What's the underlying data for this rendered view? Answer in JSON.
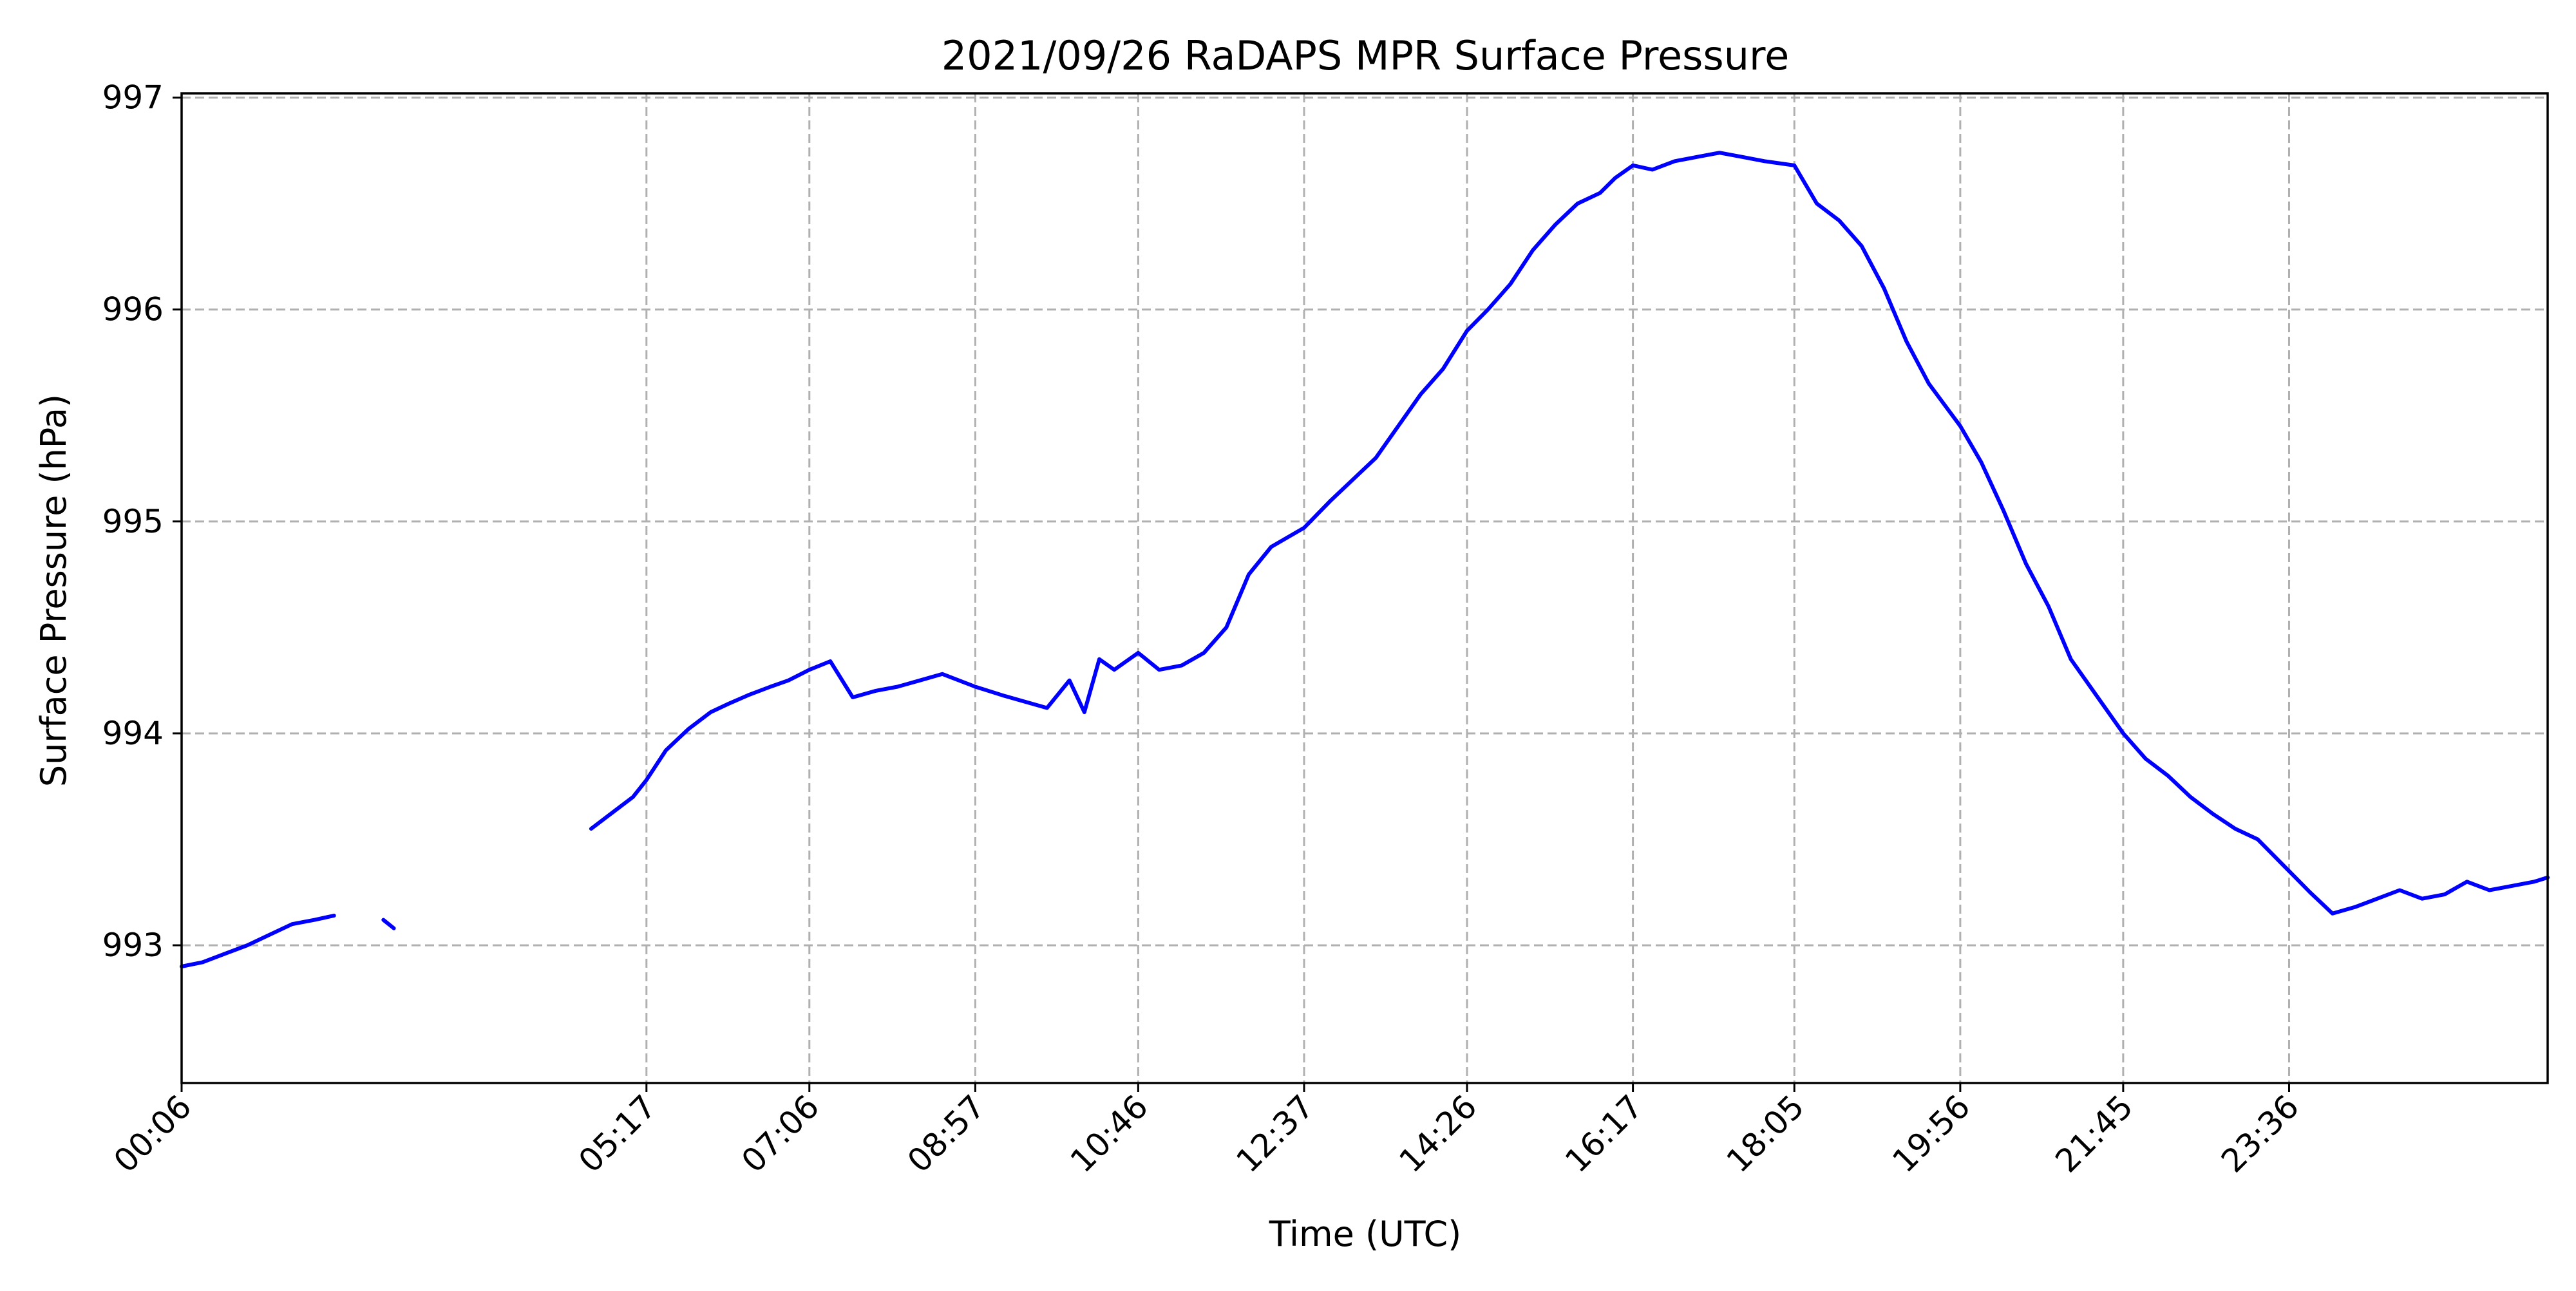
{
  "chart_data": {
    "type": "line",
    "title": "2021/09/26 RaDAPS MPR Surface Pressure",
    "xlabel": "Time (UTC)",
    "ylabel": "Surface Pressure (hPa)",
    "x_unit": "time of day (UTC)",
    "xlim": [
      "00:06",
      "26:29"
    ],
    "ylim": [
      992.35,
      997.02
    ],
    "x_ticks": [
      "00:06",
      "05:17",
      "07:06",
      "08:57",
      "10:46",
      "12:37",
      "14:26",
      "16:17",
      "18:05",
      "19:56",
      "21:45",
      "23:36"
    ],
    "y_ticks": [
      993,
      994,
      995,
      996,
      997
    ],
    "grid": true,
    "grid_style": "dashed",
    "legend": "none",
    "line_color": "#0000ff",
    "series": [
      {
        "segments": [
          {
            "x": [
              "00:06",
              "00:20",
              "00:35",
              "00:50",
              "01:05",
              "01:20",
              "01:35",
              "01:48"
            ],
            "y": [
              992.9,
              992.92,
              992.96,
              993.0,
              993.05,
              993.1,
              993.12,
              993.14
            ]
          },
          {
            "x": [
              "02:21",
              "02:28"
            ],
            "y": [
              993.12,
              993.08
            ]
          },
          {
            "x": [
              "04:40",
              "04:55",
              "05:08",
              "05:17",
              "05:30",
              "05:45",
              "06:00",
              "06:12",
              "06:25",
              "06:40",
              "06:52",
              "07:06",
              "07:20",
              "07:35",
              "07:50",
              "08:05",
              "08:20",
              "08:35",
              "08:57",
              "09:15",
              "09:30",
              "09:45",
              "10:00",
              "10:10",
              "10:20",
              "10:30",
              "10:46",
              "11:00",
              "11:15",
              "11:30",
              "11:45",
              "12:00",
              "12:15",
              "12:37",
              "12:55",
              "13:10",
              "13:25",
              "13:40",
              "13:55",
              "14:10",
              "14:26",
              "14:40",
              "14:55",
              "15:10",
              "15:25",
              "15:40",
              "15:55",
              "16:05",
              "16:17",
              "16:30",
              "16:45",
              "17:00",
              "17:15",
              "17:30",
              "17:45",
              "18:05",
              "18:20",
              "18:35",
              "18:50",
              "19:05",
              "19:20",
              "19:35",
              "19:56",
              "20:10",
              "20:25",
              "20:40",
              "20:55",
              "21:10",
              "21:25",
              "21:45",
              "22:00",
              "22:15",
              "22:30",
              "22:45",
              "23:00",
              "23:15",
              "23:36",
              "23:50",
              "24:05",
              "24:20",
              "24:35",
              "24:50",
              "25:05",
              "25:20",
              "25:35",
              "25:50",
              "26:05",
              "26:20",
              "26:29"
            ],
            "y": [
              993.55,
              993.63,
              993.7,
              993.78,
              993.92,
              994.02,
              994.1,
              994.14,
              994.18,
              994.22,
              994.25,
              994.3,
              994.34,
              994.17,
              994.2,
              994.22,
              994.25,
              994.28,
              994.22,
              994.18,
              994.15,
              994.12,
              994.25,
              994.1,
              994.35,
              994.3,
              994.38,
              994.3,
              994.32,
              994.38,
              994.5,
              994.75,
              994.88,
              994.97,
              995.1,
              995.2,
              995.3,
              995.45,
              995.6,
              995.72,
              995.9,
              996.0,
              996.12,
              996.28,
              996.4,
              996.5,
              996.55,
              996.62,
              996.68,
              996.66,
              996.7,
              996.72,
              996.74,
              996.72,
              996.7,
              996.68,
              996.5,
              996.42,
              996.3,
              996.1,
              995.85,
              995.65,
              995.45,
              995.28,
              995.05,
              994.8,
              994.6,
              994.35,
              994.2,
              994.0,
              993.88,
              993.8,
              993.7,
              993.62,
              993.55,
              993.5,
              993.35,
              993.25,
              993.15,
              993.18,
              993.22,
              993.26,
              993.22,
              993.24,
              993.3,
              993.26,
              993.28,
              993.3,
              993.32
            ]
          }
        ]
      }
    ]
  }
}
